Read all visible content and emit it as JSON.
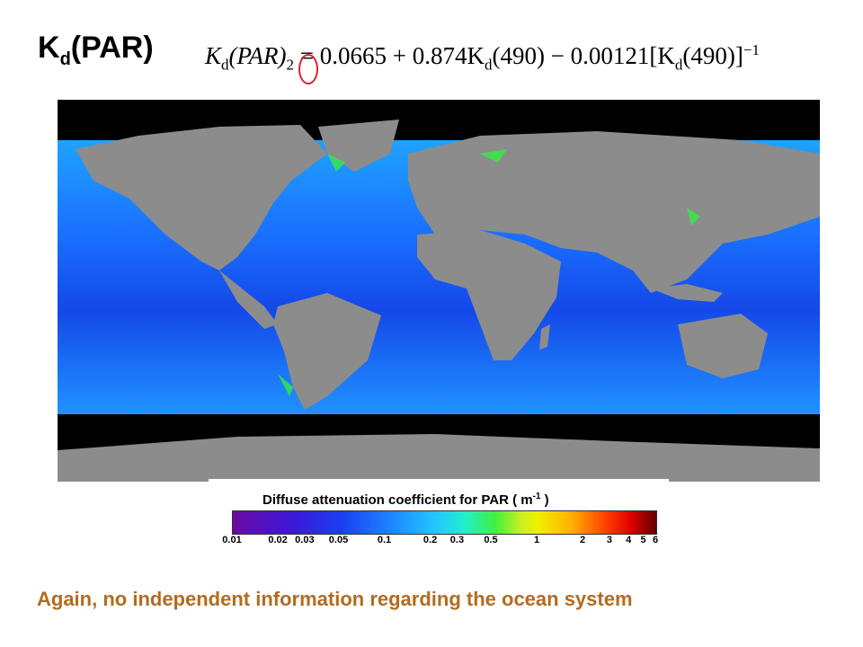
{
  "slide": {
    "title_main": "K",
    "title_sub": "d",
    "title_rest": "(PAR)",
    "formula": {
      "lhs": "K",
      "lhs_sub": "d",
      "lhs_arg": "(PAR)",
      "lhs_index": "2",
      "rhs": " = 0.0665 + 0.874K",
      "rhs_sub1": "d",
      "rhs_mid": "(490) − 0.00121[K",
      "rhs_sub2": "d",
      "rhs_end": "(490)]",
      "exponent": "−1"
    },
    "colorbar_title": "Diffuse attenuation coefficient for PAR  ( m",
    "colorbar_unit_exp": "-1",
    "colorbar_close": " )",
    "colorbar_ticks": [
      "0.01",
      "0.02",
      "0.03",
      "0.05",
      "0.1",
      "0.2",
      "0.3",
      "0.5",
      "1",
      "2",
      "3",
      "4",
      "5",
      "6"
    ],
    "caption": "Again, no independent information regarding  the ocean system",
    "colors": {
      "caption": "#b36b1f",
      "highlight": "#e0202a",
      "land": "#8c8c8c",
      "nodata": "#000000",
      "ocean": "#1e6cff"
    }
  }
}
